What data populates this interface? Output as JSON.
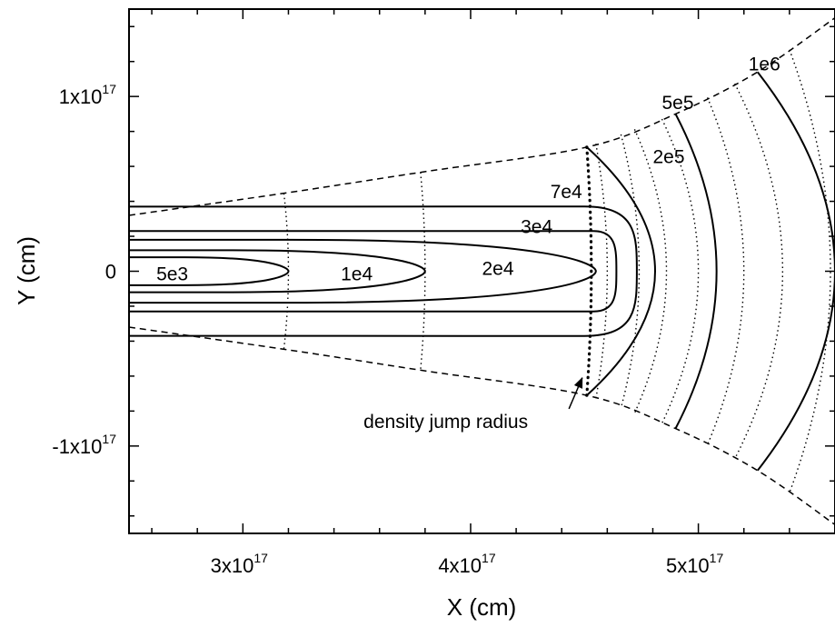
{
  "chart_data": {
    "type": "contour",
    "xlabel": "X (cm)",
    "ylabel": "Y (cm)",
    "xlim": [
      2.5e+17,
      5.6e+17
    ],
    "ylim": [
      -1.5e+17,
      1.5e+17
    ],
    "x_ticks": [
      {
        "value": 3e+17,
        "mantissa": "3x10",
        "exp": "17"
      },
      {
        "value": 4e+17,
        "mantissa": "4x10",
        "exp": "17"
      },
      {
        "value": 5e+17,
        "mantissa": "5x10",
        "exp": "17"
      }
    ],
    "y_ticks": [
      {
        "value": 1e+17,
        "mantissa": "1x10",
        "exp": "17"
      },
      {
        "value": 0,
        "mantissa": "0",
        "exp": ""
      },
      {
        "value": -1e+17,
        "mantissa": "-1x10",
        "exp": "17"
      }
    ],
    "cone_boundary": {
      "style": "dashed",
      "points": [
        [
          2.5e+17,
          3.2e+16
        ],
        [
          3.2e+17,
          4.5e+16
        ],
        [
          3.8e+17,
          5.7e+16
        ],
        [
          4.51e+17,
          7.1e+16
        ],
        [
          4.9e+17,
          9e+16
        ],
        [
          5.26e+17,
          1.14e+17
        ],
        [
          5.6e+17,
          1.45e+17
        ]
      ]
    },
    "contours": [
      {
        "label": "5e3",
        "style": "solid",
        "x_start": 2.5e+17,
        "x_tip": 3.2e+17,
        "half_width": 8000000000000000.0
      },
      {
        "label": "1e4",
        "style": "solid",
        "x_start": 2.5e+17,
        "x_tip": 3.8e+17,
        "half_width": 1.2e+16
      },
      {
        "label": "2e4",
        "style": "solid",
        "x_start": 2.5e+17,
        "x_tip": 4.55e+17,
        "half_width": 1.8e+16
      },
      {
        "label": "3e4",
        "style": "solid",
        "x_start": 2.5e+17,
        "x_tip": 4.64e+17,
        "half_width": 2.3e+16,
        "corner_radius": 1e+16
      },
      {
        "label": "7e4",
        "style": "solid",
        "x_start": 2.5e+17,
        "x_tip": 4.73e+17,
        "half_width": 3.7e+16,
        "corner_radius": 2.3e+16
      },
      {
        "label": "2e5",
        "style": "solid",
        "x_start": 4.51e+17,
        "x_tip": 4.81e+17,
        "half_width": 7.1e+16
      },
      {
        "label": "5e5",
        "style": "solid",
        "x_start": 4.9e+17,
        "x_tip": 5.08e+17,
        "half_width": 9e+16
      },
      {
        "label": "1e6",
        "style": "solid",
        "x_start": 5.26e+17,
        "x_tip": 5.6e+17,
        "half_width": 1.14e+17
      }
    ],
    "dotted_arcs": [
      {
        "x_edge": 3.18e+17,
        "x_center": 3.2e+17
      },
      {
        "x_edge": 3.78e+17,
        "x_center": 3.8e+17
      },
      {
        "x_edge": 4.51e+17,
        "x_center": 4.53e+17,
        "bold": true
      },
      {
        "x_edge": 4.55e+17,
        "x_center": 4.6e+17
      },
      {
        "x_edge": 4.66e+17,
        "x_center": 4.74e+17
      },
      {
        "x_edge": 4.72e+17,
        "x_center": 4.86e+17
      },
      {
        "x_edge": 4.84e+17,
        "x_center": 5e+17
      },
      {
        "x_edge": 5.04e+17,
        "x_center": 5.2e+17
      },
      {
        "x_edge": 5.16e+17,
        "x_center": 5.37e+17
      },
      {
        "x_edge": 5.4e+17,
        "x_center": 5.58e+17
      }
    ],
    "contour_labels": [
      {
        "text": "5e3",
        "x": 2.62e+17,
        "y": -1000000000000000.0
      },
      {
        "text": "1e4",
        "x": 3.43e+17,
        "y": -1000000000000000.0
      },
      {
        "text": "2e4",
        "x": 4.05e+17,
        "y": 2000000000000000.0
      },
      {
        "text": "3e4",
        "x": 4.22e+17,
        "y": 2.6e+16
      },
      {
        "text": "7e4",
        "x": 4.35e+17,
        "y": 4.6e+16
      },
      {
        "text": "2e5",
        "x": 4.8e+17,
        "y": 6.6e+16
      },
      {
        "text": "5e5",
        "x": 4.84e+17,
        "y": 9.7e+16
      },
      {
        "text": "1e6",
        "x": 5.22e+17,
        "y": 1.19e+17
      }
    ],
    "annotation": {
      "text": "density jump radius",
      "text_x": 3.53e+17,
      "text_y": -8.6e+16,
      "arrow_to": [
        4.49e+17,
        -6.1e+16
      ]
    }
  }
}
